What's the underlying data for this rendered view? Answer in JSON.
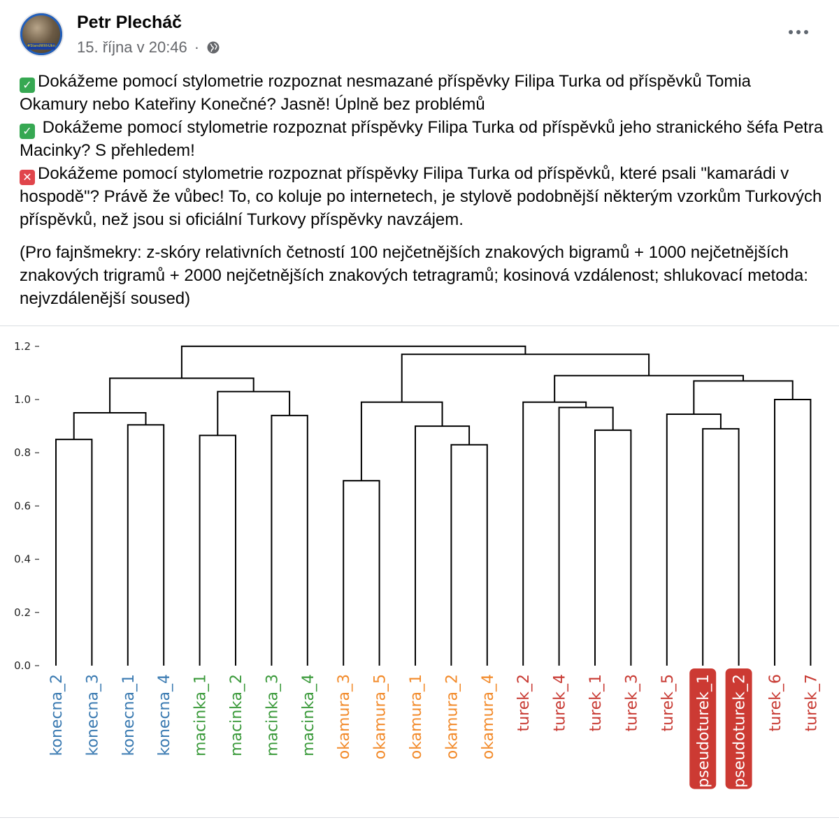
{
  "post": {
    "author": "Petr Plecháč",
    "timestamp": "15. října v 20:46",
    "separator": "·",
    "avatar_badge": "#StandWithUkraine",
    "icons": {
      "audience": "globe-icon",
      "menu": "more-options-icon",
      "check": "check-emoji-icon",
      "cross": "cross-emoji-icon"
    },
    "lines": [
      "Dokážeme pomocí stylometrie rozpoznat nesmazané příspěvky Filipa Turka od příspěvků Tomia Okamury nebo Kateřiny Konečné? Jasně! Úplně bez problémů",
      " Dokážeme pomocí stylometrie rozpoznat příspěvky Filipa Turka od příspěvků jeho stranického šéfa Petra Macinky? S přehledem!",
      "Dokážeme pomocí stylometrie rozpoznat příspěvky Filipa Turka od příspěvků, které psali \"kamarádi v hospodě\"? Právě že vůbec! To, co koluje po internetech, je stylově podobnější některým vzorkům Turkových příspěvků, než jsou si oficiální Turkovy příspěvky navzájem."
    ],
    "note": "(Pro fajnšmekry: z-skóry relativních četností 100 nejčetnějších znakových bigramů + 1000 nejčetnějších znakových trigramů + 2000 nejčetnějších znakových tetragramů; kosinová vzdálenost; shlukovací metoda: nejvzdálenější soused)"
  },
  "chart_data": {
    "type": "dendrogram",
    "ylim": [
      0,
      1.2
    ],
    "yticks": [
      0.0,
      0.2,
      0.4,
      0.6,
      0.8,
      1.0,
      1.2
    ],
    "ytick_labels": [
      "0.0",
      "0.2",
      "0.4",
      "0.6",
      "0.8",
      "1.0",
      "1.2"
    ],
    "leaves": [
      {
        "label": "konecna_2",
        "group": "konecna"
      },
      {
        "label": "konecna_3",
        "group": "konecna"
      },
      {
        "label": "konecna_1",
        "group": "konecna"
      },
      {
        "label": "konecna_4",
        "group": "konecna"
      },
      {
        "label": "macinka_1",
        "group": "macinka"
      },
      {
        "label": "macinka_2",
        "group": "macinka"
      },
      {
        "label": "macinka_3",
        "group": "macinka"
      },
      {
        "label": "macinka_4",
        "group": "macinka"
      },
      {
        "label": "okamura_3",
        "group": "okamura"
      },
      {
        "label": "okamura_5",
        "group": "okamura"
      },
      {
        "label": "okamura_1",
        "group": "okamura"
      },
      {
        "label": "okamura_2",
        "group": "okamura"
      },
      {
        "label": "okamura_4",
        "group": "okamura"
      },
      {
        "label": "turek_2",
        "group": "turek"
      },
      {
        "label": "turek_4",
        "group": "turek"
      },
      {
        "label": "turek_1",
        "group": "turek"
      },
      {
        "label": "turek_3",
        "group": "turek"
      },
      {
        "label": "turek_5",
        "group": "turek"
      },
      {
        "label": "pseudoturek_1",
        "group": "pseudoturek",
        "highlight": true
      },
      {
        "label": "pseudoturek_2",
        "group": "pseudoturek",
        "highlight": true
      },
      {
        "label": "turek_6",
        "group": "turek"
      },
      {
        "label": "turek_7",
        "group": "turek"
      }
    ],
    "group_colors": {
      "konecna": "#3a7ab1",
      "macinka": "#3b9a3b",
      "okamura": "#f28a2a",
      "turek": "#c83a33",
      "pseudoturek": "#ffffff"
    },
    "highlight_color": "#cc3a33",
    "merges": [
      {
        "id": "A",
        "left": 0,
        "right": 1,
        "height": 0.85
      },
      {
        "id": "B",
        "left": 2,
        "right": 3,
        "height": 0.905
      },
      {
        "id": "C",
        "left": "A",
        "right": "B",
        "height": 0.95
      },
      {
        "id": "D",
        "left": 4,
        "right": 5,
        "height": 0.865
      },
      {
        "id": "E",
        "left": 6,
        "right": 7,
        "height": 0.94
      },
      {
        "id": "F",
        "left": "D",
        "right": "E",
        "height": 1.03
      },
      {
        "id": "G",
        "left": "C",
        "right": "F",
        "height": 1.08
      },
      {
        "id": "H",
        "left": 8,
        "right": 9,
        "height": 0.695
      },
      {
        "id": "I",
        "left": 11,
        "right": 12,
        "height": 0.83
      },
      {
        "id": "J",
        "left": 10,
        "right": "I",
        "height": 0.9
      },
      {
        "id": "K",
        "left": "H",
        "right": "J",
        "height": 0.99
      },
      {
        "id": "L",
        "left": 15,
        "right": 16,
        "height": 0.885
      },
      {
        "id": "M",
        "left": 14,
        "right": "L",
        "height": 0.97
      },
      {
        "id": "N",
        "left": 13,
        "right": "M",
        "height": 0.99
      },
      {
        "id": "O",
        "left": 18,
        "right": 19,
        "height": 0.89
      },
      {
        "id": "P",
        "left": 17,
        "right": "O",
        "height": 0.945
      },
      {
        "id": "Q",
        "left": 20,
        "right": 21,
        "height": 1.0
      },
      {
        "id": "R",
        "left": "P",
        "right": "Q",
        "height": 1.07
      },
      {
        "id": "S",
        "left": "N",
        "right": "R",
        "height": 1.09
      },
      {
        "id": "T",
        "left": "K",
        "right": "S",
        "height": 1.17
      },
      {
        "id": "U",
        "left": "G",
        "right": "T",
        "height": 1.2
      }
    ]
  }
}
